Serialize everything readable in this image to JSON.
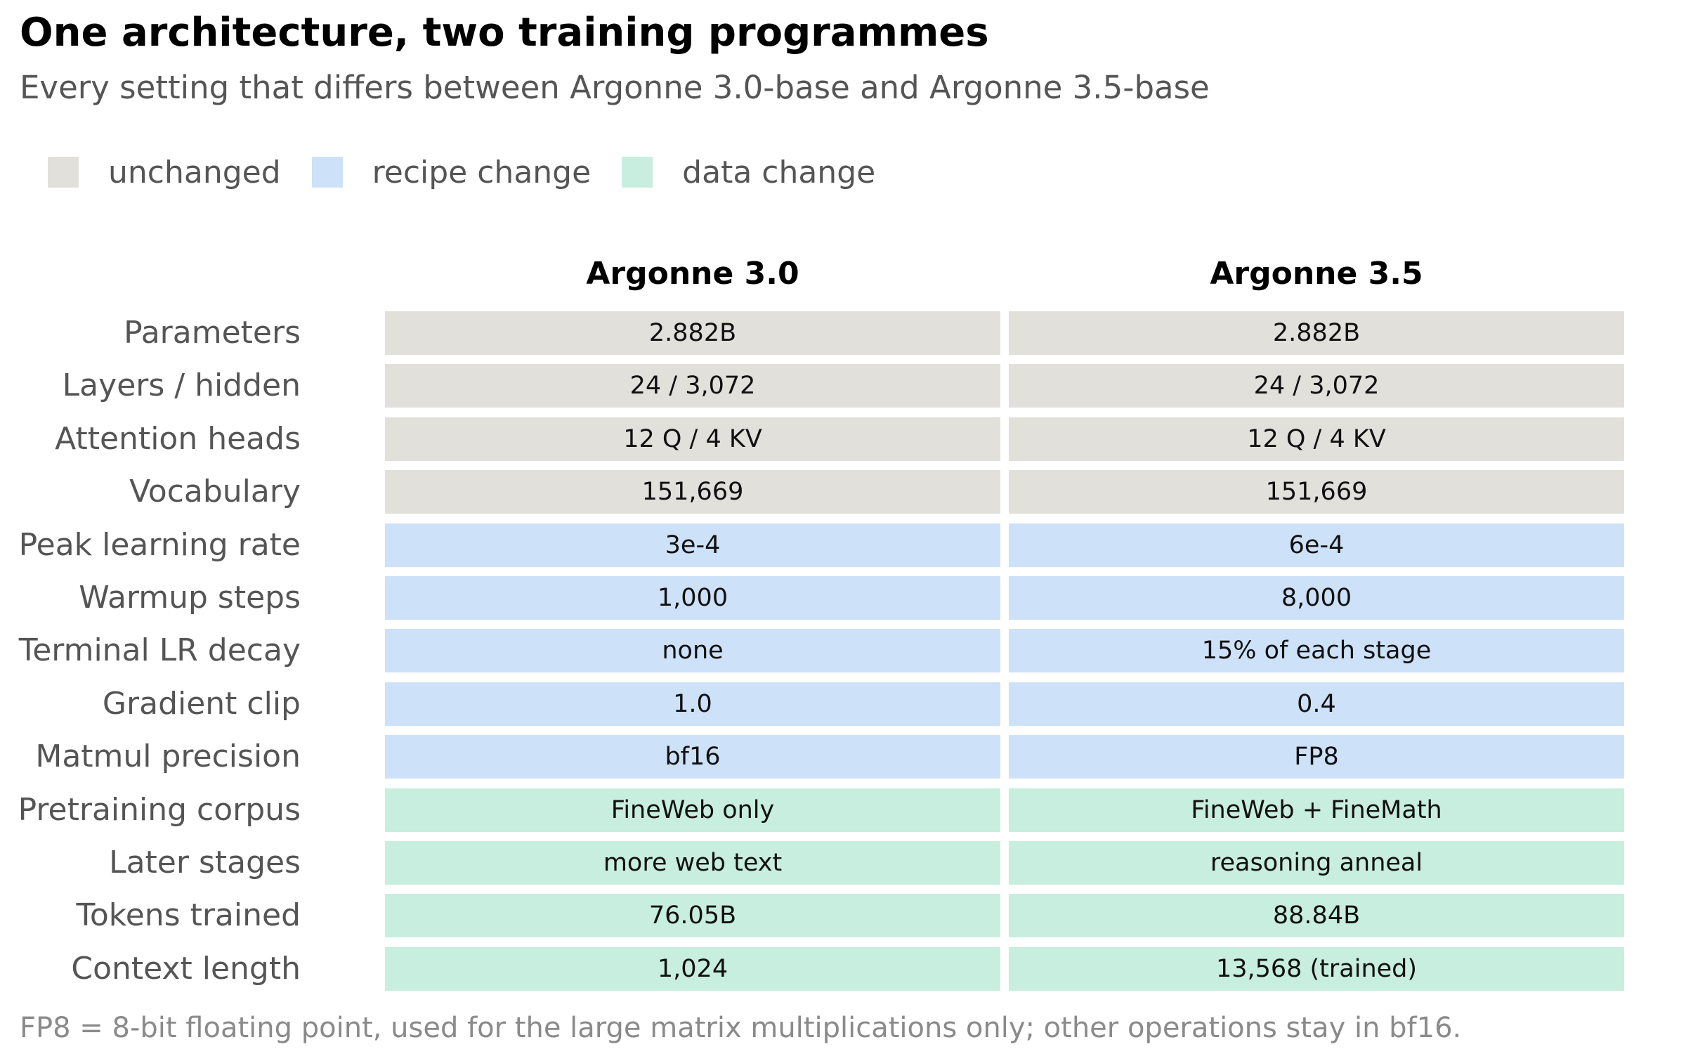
{
  "colors": {
    "unchanged": "#e1e0db",
    "recipe": "#cde1f9",
    "data": "#c8eedf"
  },
  "chart_data": {
    "type": "table",
    "title": "One architecture, two training programmes",
    "subtitle": "Every setting that differs between Argonne 3.0-base and Argonne 3.5-base",
    "legend": [
      {
        "key": "unchanged",
        "label": "unchanged"
      },
      {
        "key": "recipe",
        "label": "recipe change"
      },
      {
        "key": "data",
        "label": "data change"
      }
    ],
    "columns": [
      "Argonne 3.0",
      "Argonne 3.5"
    ],
    "rows": [
      {
        "label": "Parameters",
        "category": "unchanged",
        "values": [
          "2.882B",
          "2.882B"
        ]
      },
      {
        "label": "Layers / hidden",
        "category": "unchanged",
        "values": [
          "24 / 3,072",
          "24 / 3,072"
        ]
      },
      {
        "label": "Attention heads",
        "category": "unchanged",
        "values": [
          "12 Q / 4 KV",
          "12 Q / 4 KV"
        ]
      },
      {
        "label": "Vocabulary",
        "category": "unchanged",
        "values": [
          "151,669",
          "151,669"
        ]
      },
      {
        "label": "Peak learning rate",
        "category": "recipe",
        "values": [
          "3e-4",
          "6e-4"
        ]
      },
      {
        "label": "Warmup steps",
        "category": "recipe",
        "values": [
          "1,000",
          "8,000"
        ]
      },
      {
        "label": "Terminal LR decay",
        "category": "recipe",
        "values": [
          "none",
          "15% of each stage"
        ]
      },
      {
        "label": "Gradient clip",
        "category": "recipe",
        "values": [
          "1.0",
          "0.4"
        ]
      },
      {
        "label": "Matmul precision",
        "category": "recipe",
        "values": [
          "bf16",
          "FP8"
        ]
      },
      {
        "label": "Pretraining corpus",
        "category": "data",
        "values": [
          "FineWeb only",
          "FineWeb + FineMath"
        ]
      },
      {
        "label": "Later stages",
        "category": "data",
        "values": [
          "more web text",
          "reasoning anneal"
        ]
      },
      {
        "label": "Tokens trained",
        "category": "data",
        "values": [
          "76.05B",
          "88.84B"
        ]
      },
      {
        "label": "Context length",
        "category": "data",
        "values": [
          "1,024",
          "13,568 (trained)"
        ]
      }
    ],
    "footnote": "FP8 = 8-bit floating point, used for the large matrix multiplications only; other operations stay in bf16."
  }
}
